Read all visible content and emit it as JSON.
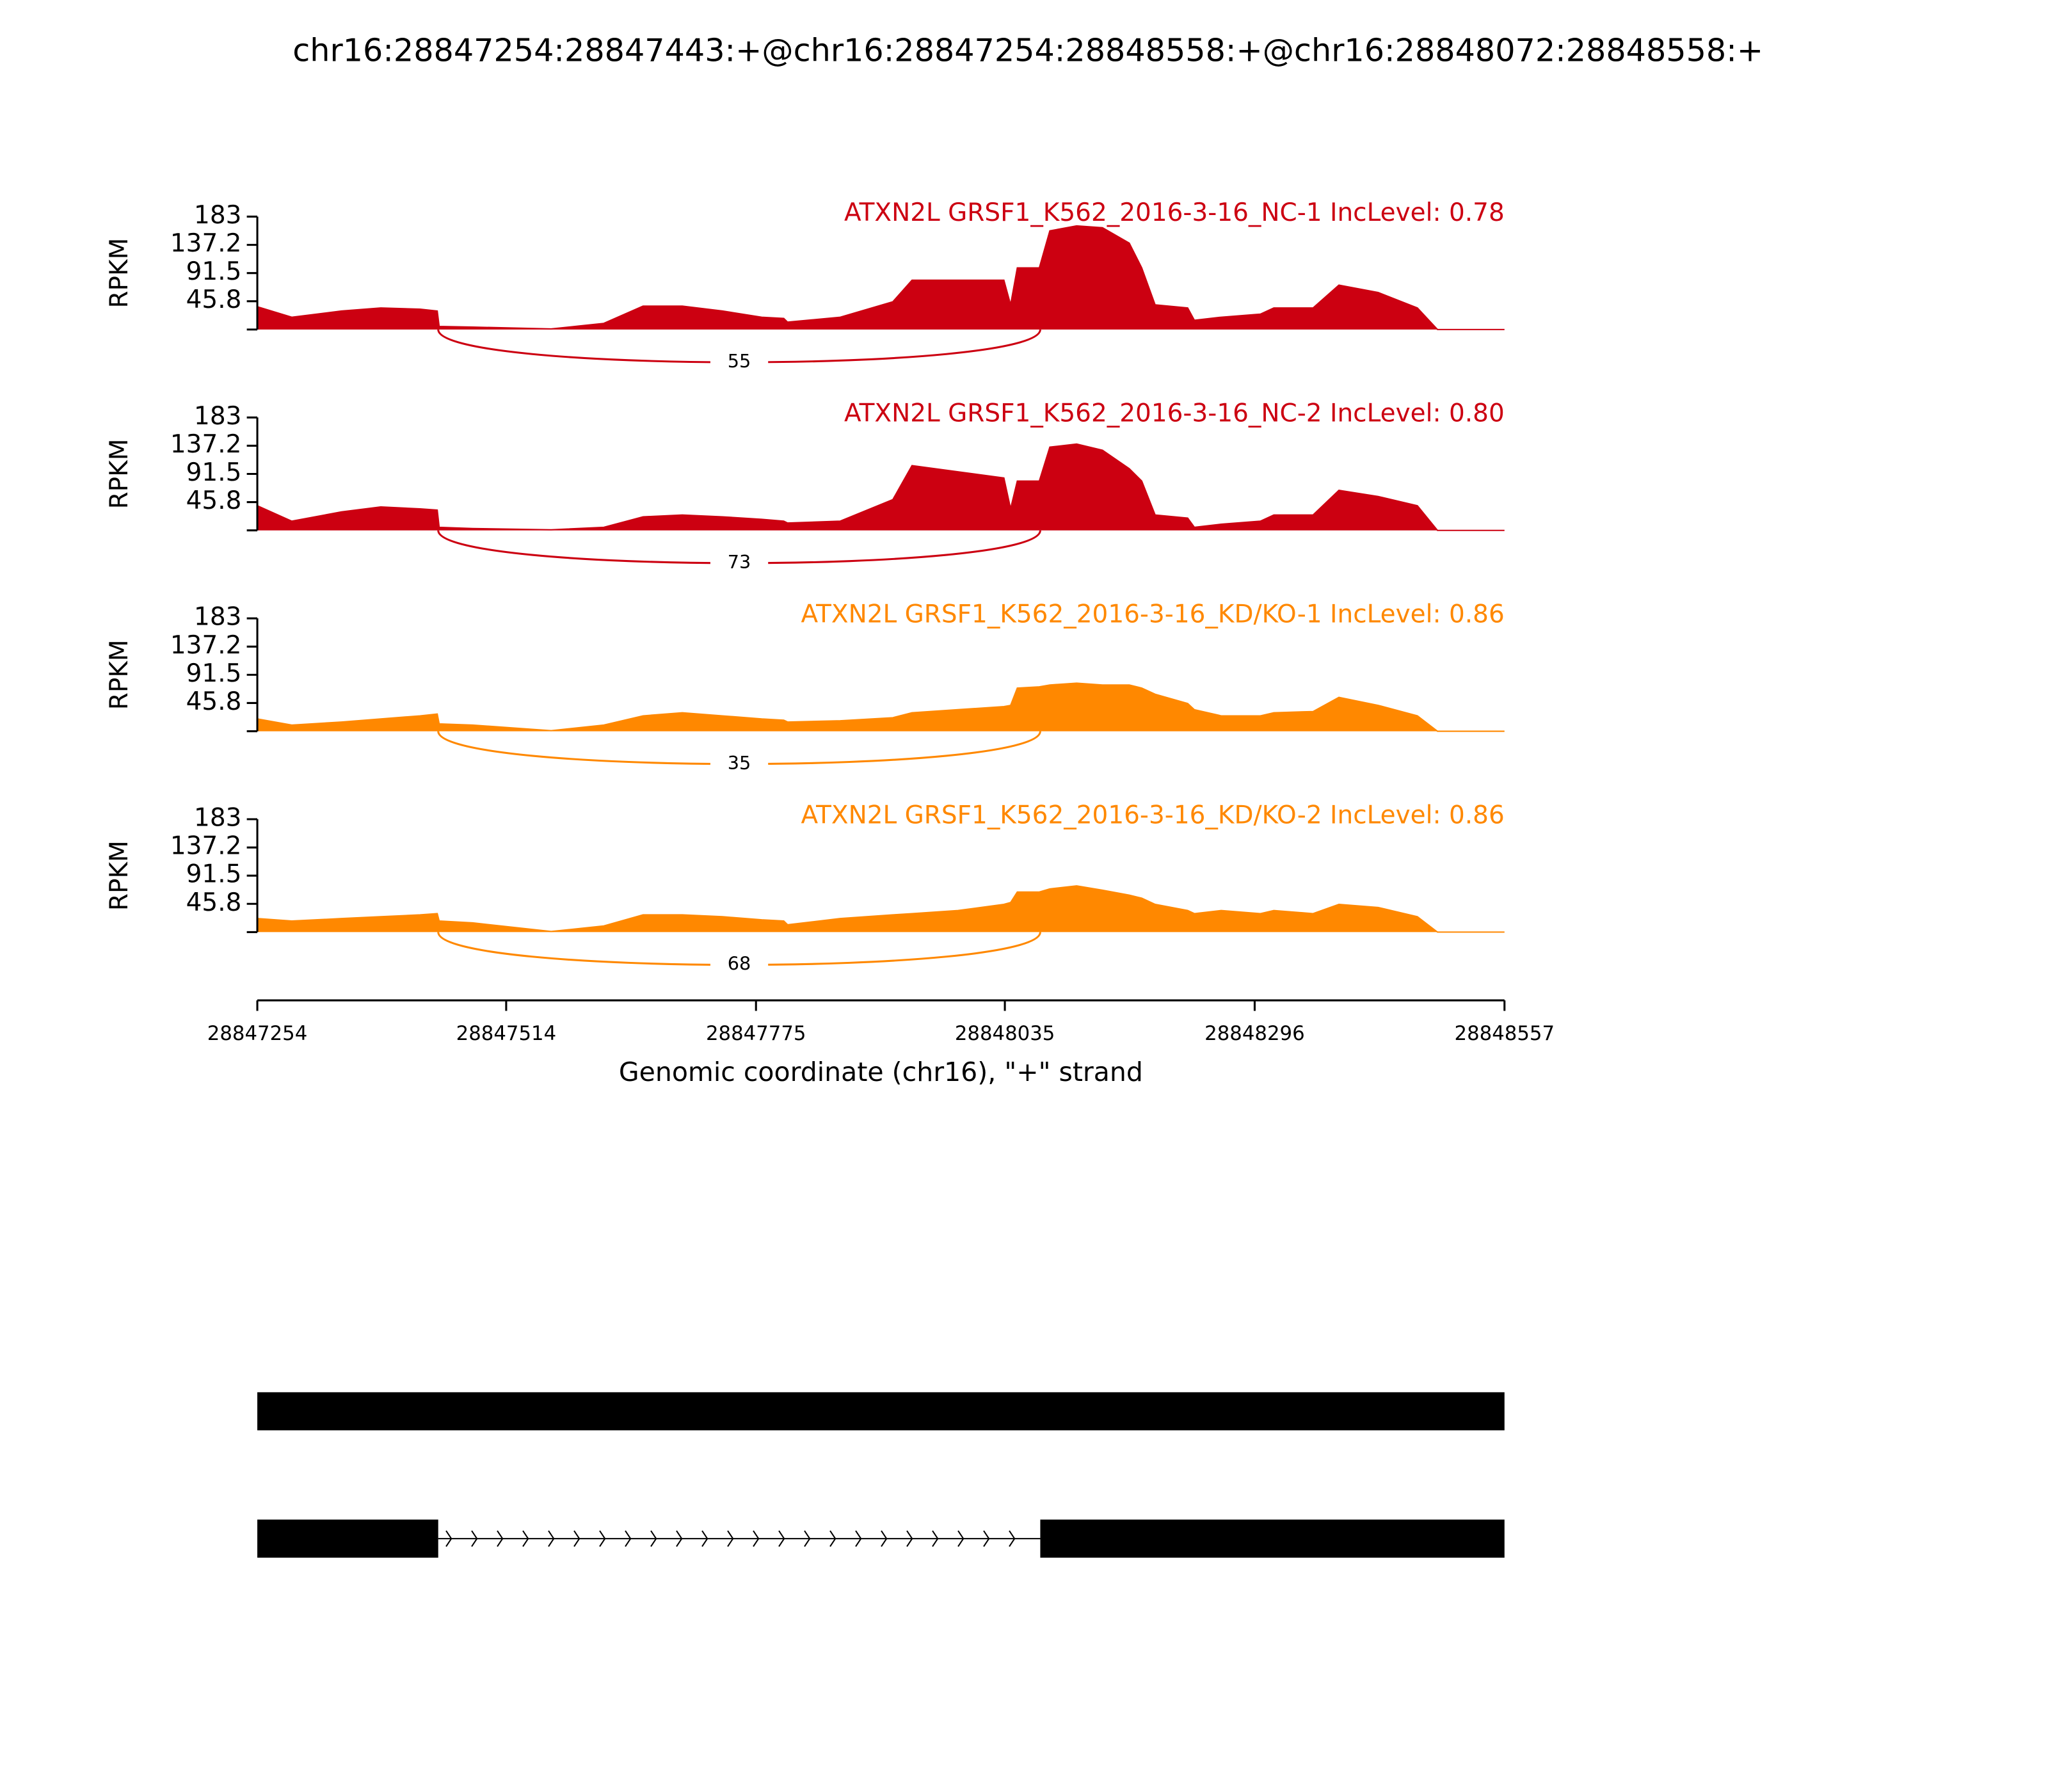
{
  "chart_data": {
    "type": "sashimi",
    "title": "chr16:28847254:28847443:+@chr16:28847254:28848558:+@chr16:28848072:28848558:+",
    "xlabel": "Genomic coordinate (chr16), \"+\" strand",
    "xlim": [
      28847254,
      28848557
    ],
    "xticks": [
      28847254,
      28847514,
      28847775,
      28848035,
      28848296,
      28848557
    ],
    "x": [
      28847254,
      28847290,
      28847342,
      28847383,
      28847424,
      28847442,
      28847444,
      28847479,
      28847561,
      28847616,
      28847657,
      28847698,
      28847740,
      28847781,
      28847804,
      28847808,
      28847863,
      28847918,
      28847938,
      28847986,
      28848034,
      28848041,
      28848048,
      28848071,
      28848082,
      28848110,
      28848137,
      28848165,
      28848178,
      28848192,
      28848226,
      28848233,
      28848261,
      28848302,
      28848316,
      28848357,
      28848384,
      28848425,
      28848466,
      28848487,
      28848557
    ],
    "tracks": [
      {
        "type": "area",
        "title": "ATXN2L GRSF1_K562_2016-3-16_NC-1 IncLevel: 0.78",
        "color": "#cc0011",
        "ylabel": "RPKM",
        "ylim": [
          0,
          183
        ],
        "yticks": [
          45.8,
          91.5,
          137.2,
          183
        ],
        "values": [
          37,
          20,
          30,
          35,
          33,
          30,
          5,
          4,
          1,
          10,
          38,
          38,
          30,
          20,
          18,
          12,
          20,
          45,
          80,
          80,
          80,
          40,
          100,
          100,
          160,
          168,
          165,
          140,
          100,
          40,
          35,
          15,
          20,
          25,
          35,
          35,
          72,
          60,
          35,
          0,
          0
        ],
        "junction": {
          "start": 28847443,
          "end": 28848072,
          "count": 55
        }
      },
      {
        "type": "area",
        "title": "ATXN2L GRSF1_K562_2016-3-16_NC-2 IncLevel: 0.80",
        "color": "#cc0011",
        "ylabel": "RPKM",
        "ylim": [
          0,
          183
        ],
        "yticks": [
          45.8,
          91.5,
          137.2,
          183
        ],
        "values": [
          40,
          15,
          30,
          38,
          35,
          33,
          5,
          3,
          1,
          5,
          22,
          25,
          22,
          18,
          15,
          12,
          15,
          50,
          105,
          95,
          85,
          35,
          80,
          80,
          135,
          140,
          130,
          100,
          80,
          25,
          20,
          5,
          10,
          15,
          25,
          25,
          65,
          55,
          40,
          0,
          0
        ],
        "junction": {
          "start": 28847443,
          "end": 28848072,
          "count": 73
        }
      },
      {
        "type": "area",
        "title": "ATXN2L GRSF1_K562_2016-3-16_KD/KO-1 IncLevel: 0.86",
        "color": "#ff8800",
        "ylabel": "RPKM",
        "ylim": [
          0,
          183
        ],
        "yticks": [
          45.8,
          91.5,
          137.2,
          183
        ],
        "values": [
          20,
          10,
          15,
          20,
          25,
          28,
          12,
          10,
          1,
          10,
          25,
          30,
          25,
          20,
          18,
          15,
          17,
          22,
          30,
          35,
          40,
          42,
          70,
          72,
          75,
          78,
          75,
          75,
          70,
          60,
          45,
          35,
          25,
          25,
          30,
          32,
          55,
          42,
          25,
          0,
          0
        ],
        "junction": {
          "start": 28847443,
          "end": 28848072,
          "count": 35
        }
      },
      {
        "type": "area",
        "title": "ATXN2L GRSF1_K562_2016-3-16_KD/KO-2 IncLevel: 0.86",
        "color": "#ff8800",
        "ylabel": "RPKM",
        "ylim": [
          0,
          183
        ],
        "yticks": [
          45.8,
          91.5,
          137.2,
          183
        ],
        "values": [
          22,
          18,
          22,
          25,
          28,
          30,
          18,
          15,
          1,
          10,
          28,
          28,
          25,
          20,
          18,
          12,
          22,
          28,
          30,
          35,
          45,
          48,
          65,
          65,
          70,
          75,
          68,
          60,
          55,
          45,
          35,
          30,
          35,
          30,
          35,
          30,
          45,
          40,
          25,
          0,
          0
        ],
        "junction": {
          "start": 28847443,
          "end": 28848072,
          "count": 68
        }
      }
    ],
    "transcripts": [
      {
        "exons": [
          [
            28847254,
            28848557
          ]
        ]
      },
      {
        "exons": [
          [
            28847254,
            28847443
          ],
          [
            28848072,
            28848557
          ]
        ]
      }
    ]
  }
}
